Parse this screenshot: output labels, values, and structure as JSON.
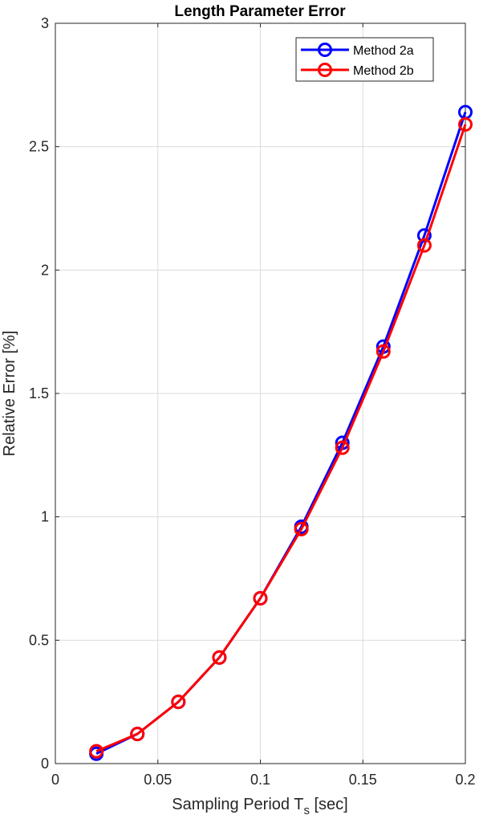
{
  "chart_data": {
    "type": "line",
    "title": "Length Parameter Error",
    "xlabel_main": "Sampling Period T",
    "xlabel_sub": "s",
    "xlabel_tail": " [sec]",
    "ylabel": "Relative Error [%]",
    "xlim": [
      0,
      0.2
    ],
    "ylim": [
      0,
      3
    ],
    "xticks": [
      "0",
      "0.05",
      "0.1",
      "0.15",
      "0.2"
    ],
    "xtick_values": [
      0,
      0.05,
      0.1,
      0.15,
      0.2
    ],
    "yticks": [
      "0",
      "0.5",
      "1",
      "1.5",
      "2",
      "2.5",
      "3"
    ],
    "ytick_values": [
      0,
      0.5,
      1,
      1.5,
      2,
      2.5,
      3
    ],
    "grid": true,
    "legend_position": "top-right",
    "x": [
      0.02,
      0.04,
      0.06,
      0.08,
      0.1,
      0.12,
      0.14,
      0.16,
      0.18,
      0.2
    ],
    "series": [
      {
        "name": "Method 2a",
        "color": "#0000FF",
        "values": [
          0.04,
          0.12,
          0.25,
          0.43,
          0.67,
          0.96,
          1.3,
          1.69,
          2.14,
          2.64
        ]
      },
      {
        "name": "Method 2b",
        "color": "#FF0000",
        "values": [
          0.05,
          0.12,
          0.25,
          0.43,
          0.67,
          0.95,
          1.28,
          1.67,
          2.1,
          2.59
        ]
      }
    ]
  }
}
